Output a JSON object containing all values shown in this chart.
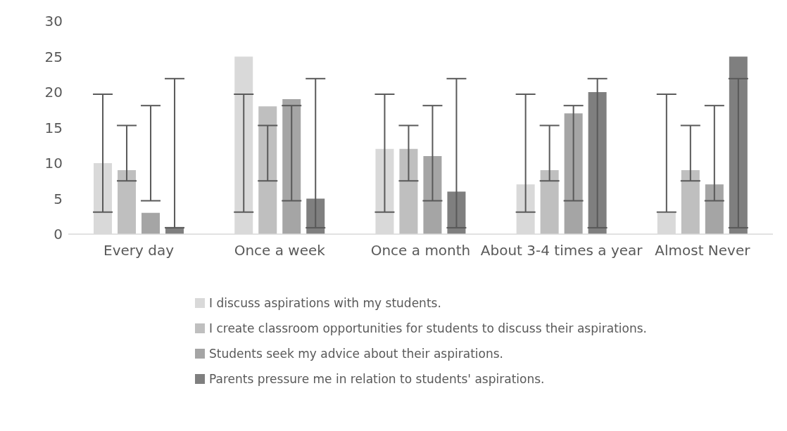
{
  "chart_data": {
    "type": "bar",
    "categories": [
      "Every day",
      "Once a week",
      "Once a month",
      "About 3-4 times a year",
      "Almost Never"
    ],
    "series": [
      {
        "name": "I discuss aspirations with my students.",
        "color": "#d9d9d9",
        "values": [
          10,
          25,
          12,
          7,
          3
        ],
        "errors": [
          [
            3.1,
            19.7
          ],
          [
            3.1,
            19.7
          ],
          [
            3.1,
            19.7
          ],
          [
            3.1,
            19.7
          ],
          [
            3.1,
            19.7
          ]
        ]
      },
      {
        "name": "I create classroom opportunities for students to discuss their aspirations.",
        "color": "#bfbfbf",
        "values": [
          9,
          18,
          12,
          9,
          9
        ],
        "errors": [
          [
            7.5,
            15.3
          ],
          [
            7.5,
            15.3
          ],
          [
            7.5,
            15.3
          ],
          [
            7.5,
            15.3
          ],
          [
            7.5,
            15.3
          ]
        ]
      },
      {
        "name": "Students seek my advice about their aspirations.",
        "color": "#a5a5a5",
        "values": [
          3,
          19,
          11,
          17,
          7
        ],
        "errors": [
          [
            4.7,
            18.1
          ],
          [
            4.7,
            18.1
          ],
          [
            4.7,
            18.1
          ],
          [
            4.7,
            18.1
          ],
          [
            4.7,
            18.1
          ]
        ]
      },
      {
        "name": "Parents pressure me in relation to students' aspirations.",
        "color": "#7f7f7f",
        "values": [
          1,
          5,
          6,
          20,
          25
        ],
        "errors": [
          [
            0.9,
            21.9
          ],
          [
            0.9,
            21.9
          ],
          [
            0.9,
            21.9
          ],
          [
            0.9,
            21.9
          ],
          [
            0.9,
            21.9
          ]
        ]
      }
    ],
    "ylim": [
      0,
      30
    ],
    "yticks": [
      0,
      5,
      10,
      15,
      20,
      25,
      30
    ],
    "grid": false,
    "legend": "bottom"
  }
}
